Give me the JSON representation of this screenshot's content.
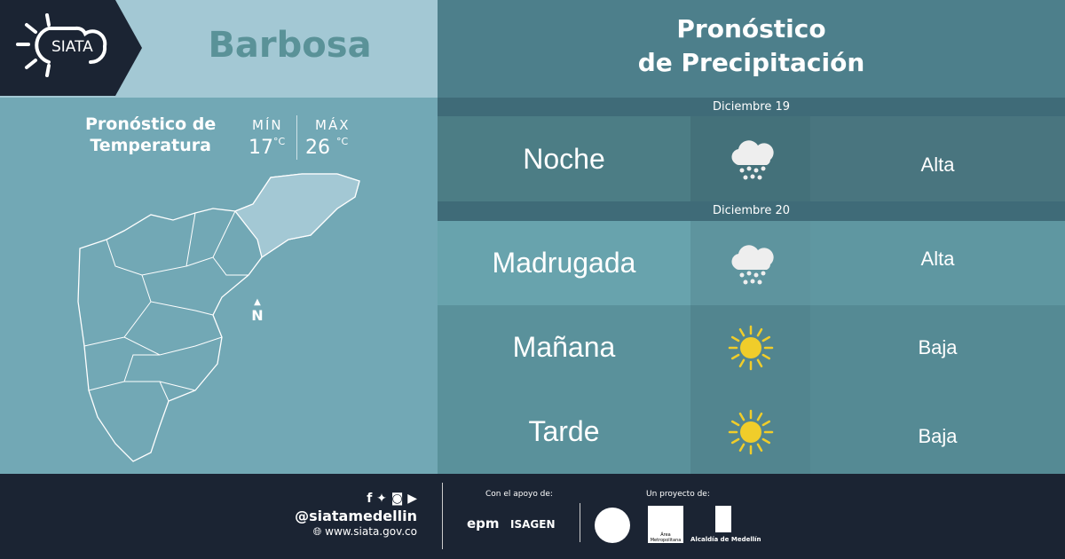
{
  "brand": {
    "logo_text": "SIATA"
  },
  "town": "Barbosa",
  "temperature": {
    "title_line1": "Pronóstico de",
    "title_line2": "Temperatura",
    "min_label": "MÍN",
    "min_value": "17",
    "max_label": "MÁX",
    "max_value": "26",
    "unit": "°C"
  },
  "map": {
    "north_label": "N"
  },
  "precipitation": {
    "title_line1": "Pronóstico",
    "title_line2": "de Precipitación",
    "dates": [
      "Diciembre 19",
      "Diciembre 20"
    ],
    "rows": [
      {
        "period": "Noche",
        "icon": "rain-cloud-icon",
        "level": "Alta"
      },
      {
        "period": "Madrugada",
        "icon": "rain-cloud-icon",
        "level": "Alta"
      },
      {
        "period": "Mañana",
        "icon": "sun-icon",
        "level": "Baja"
      },
      {
        "period": "Tarde",
        "icon": "sun-icon",
        "level": "Baja"
      }
    ]
  },
  "footer": {
    "handle": "@siatamedellin",
    "website": "www.siata.gov.co",
    "support_label": "Con el apoyo de:",
    "support_logos": [
      "epm",
      "ISAGEN"
    ],
    "project_label": "Un proyecto de:",
    "project_logos": [
      "Área Metropolitana",
      "Alcaldía de Medellín"
    ]
  },
  "colors": {
    "dark": "#1b2433",
    "sun": "#f0cd2a",
    "header": "#a3c8d4"
  }
}
